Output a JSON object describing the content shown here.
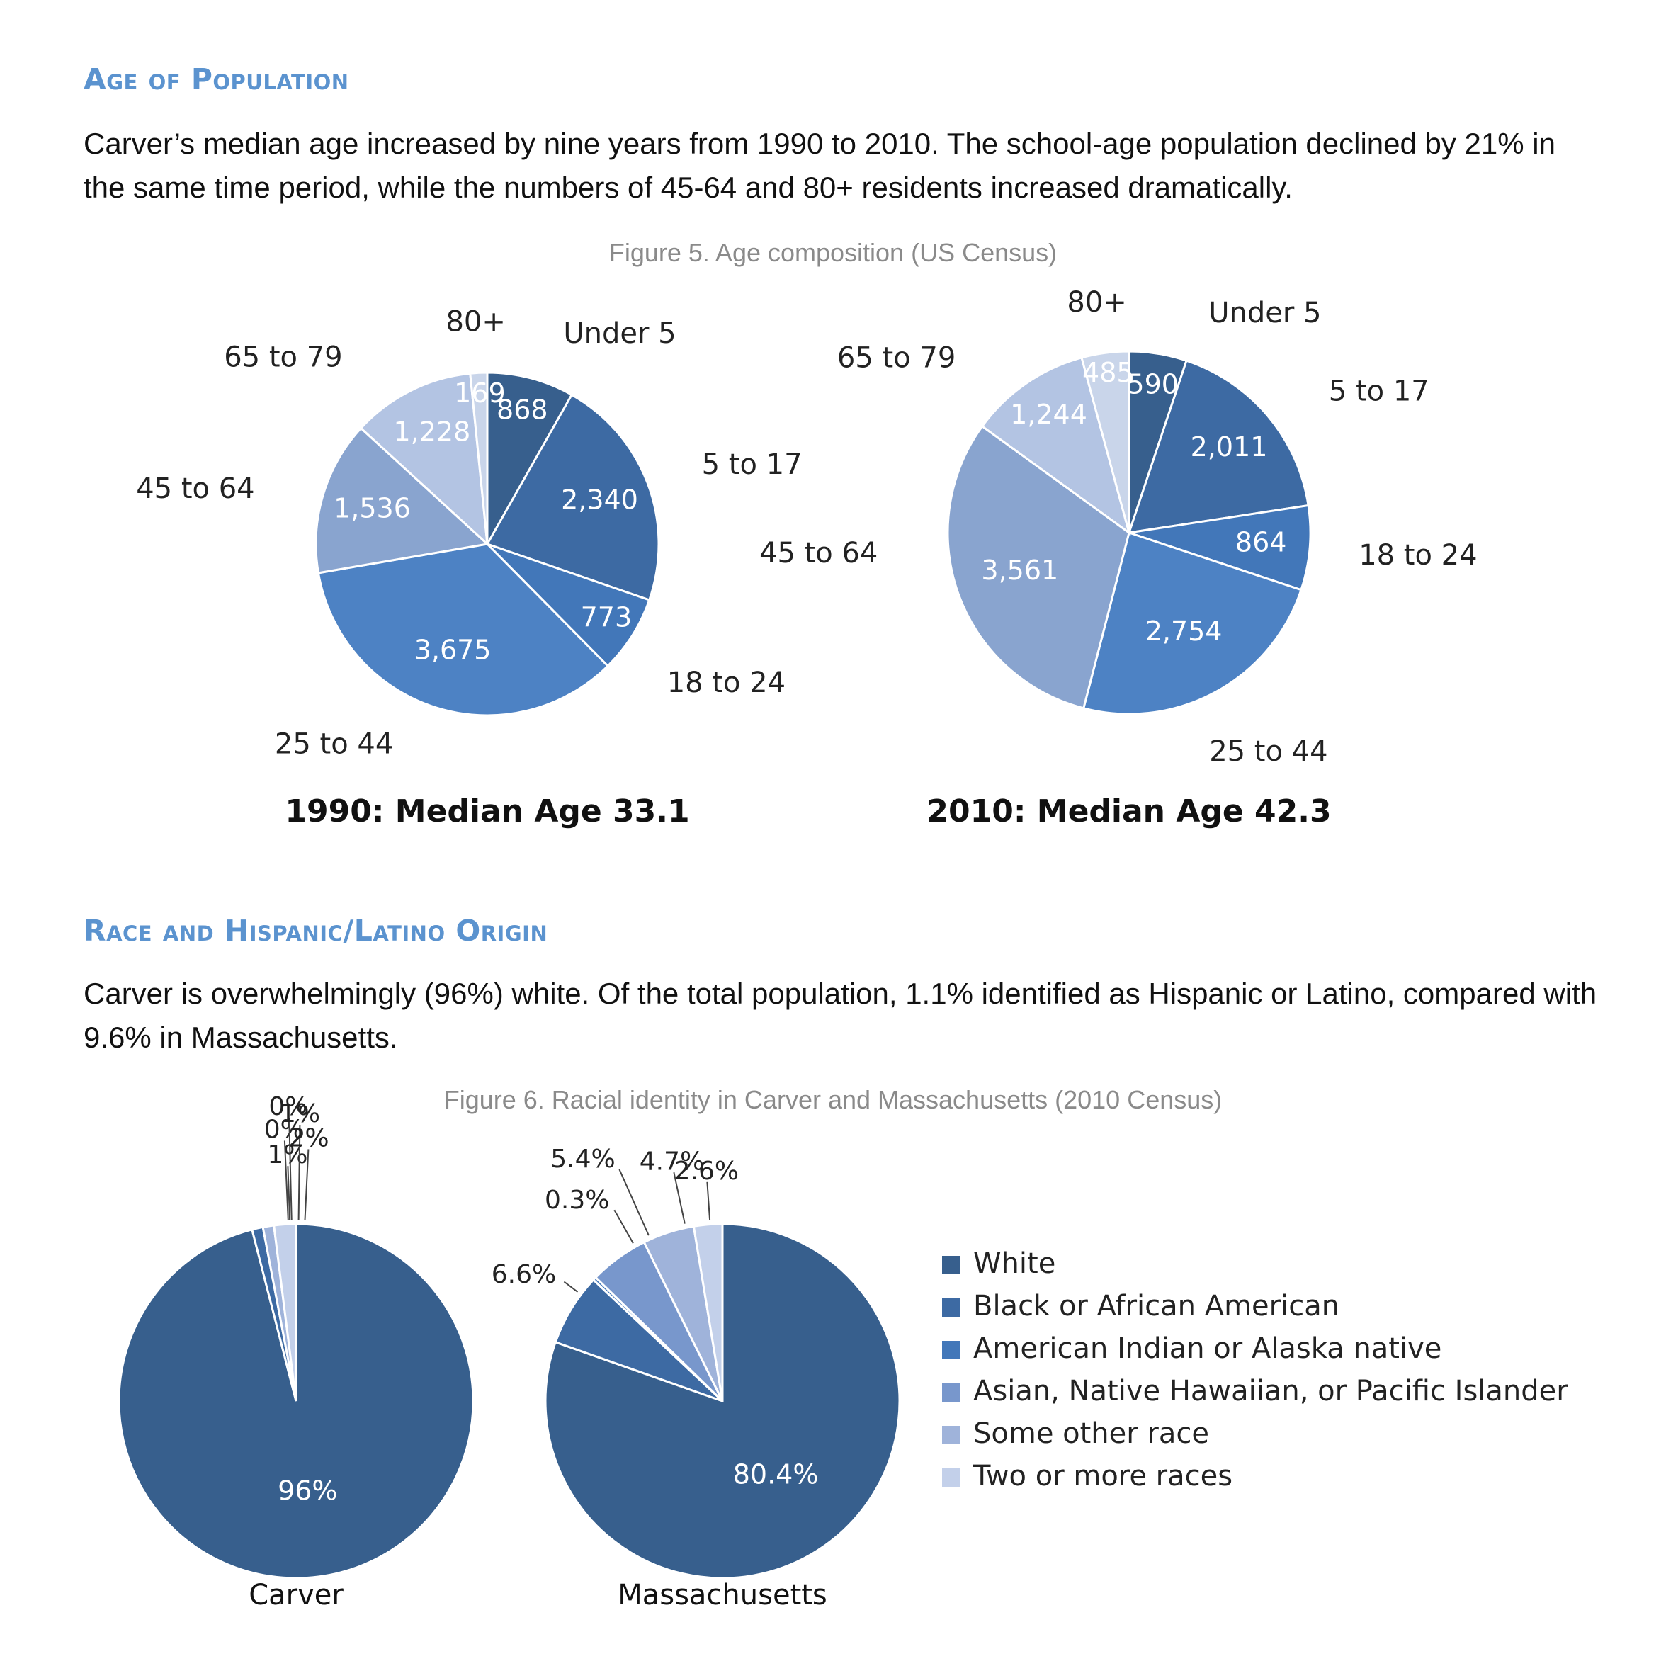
{
  "section1": {
    "heading": "Age of Population",
    "paragraph": "Carver’s median age increased by nine years from 1990 to 2010. The school-age population declined by 21% in the same time period, while the numbers of 45-64 and 80+ residents increased dramatically.",
    "caption": "Figure 5. Age composition (US Census)"
  },
  "section2": {
    "heading": "Race and Hispanic/Latino Origin",
    "paragraph": "Carver is overwhelmingly (96%) white. Of the total population, 1.1% identified as Hispanic or Latino, compared with 9.6% in Massachusetts.",
    "caption": "Figure 6. Racial identity in Carver and Massachusetts (2010 Census)"
  },
  "colors": {
    "age": [
      "#375f8d",
      "#3d6aa3",
      "#4277b9",
      "#4d82c4",
      "#89a4cf",
      "#b3c4e3",
      "#c9d5ea"
    ],
    "race": [
      "#375f8d",
      "#3d6aa3",
      "#4277b9",
      "#7897cc",
      "#9fb3da",
      "#c3d0ea"
    ],
    "heading": "#5b93cf"
  },
  "chart_data": [
    {
      "type": "pie",
      "title": "1990:  Median Age 33.1",
      "categories": [
        "Under 5",
        "5 to 17",
        "18 to 24",
        "25 to 44",
        "45 to 64",
        "65 to 79",
        "80+"
      ],
      "values": [
        868,
        2340,
        773,
        3675,
        1536,
        1228,
        169
      ],
      "value_labels": [
        "868",
        "2,340",
        "773",
        "3,675",
        "1,536",
        "1,228",
        "169"
      ]
    },
    {
      "type": "pie",
      "title": "2010:  Median Age 42.3",
      "categories": [
        "Under 5",
        "5 to 17",
        "18 to 24",
        "25 to 44",
        "45 to 64",
        "65 to 79",
        "80+"
      ],
      "values": [
        590,
        2011,
        864,
        2754,
        3561,
        1244,
        485
      ],
      "value_labels": [
        "590",
        "2,011",
        "864",
        "2,754",
        "3,561",
        "1,244",
        "485"
      ]
    },
    {
      "type": "pie",
      "title": "Carver",
      "categories": [
        "White",
        "Black or African American",
        "American Indian or Alaska native",
        "Asian, Native Hawaiian, or Pacific Islander",
        "Some other race",
        "Two or more races"
      ],
      "values": [
        96,
        1,
        0,
        0,
        1,
        2
      ],
      "value_labels": [
        "96%",
        "1%",
        "0%",
        "0%",
        "1%",
        "2%"
      ],
      "legend": "right"
    },
    {
      "type": "pie",
      "title": "Massachusetts",
      "categories": [
        "White",
        "Black or African American",
        "American Indian or Alaska native",
        "Asian, Native Hawaiian, or Pacific Islander",
        "Some other race",
        "Two or more races"
      ],
      "values": [
        80.4,
        6.6,
        0.3,
        5.4,
        4.7,
        2.6
      ],
      "value_labels": [
        "80.4%",
        "6.6%",
        "0.3%",
        "5.4%",
        "4.7%",
        "2.6%"
      ],
      "legend": "right"
    }
  ]
}
